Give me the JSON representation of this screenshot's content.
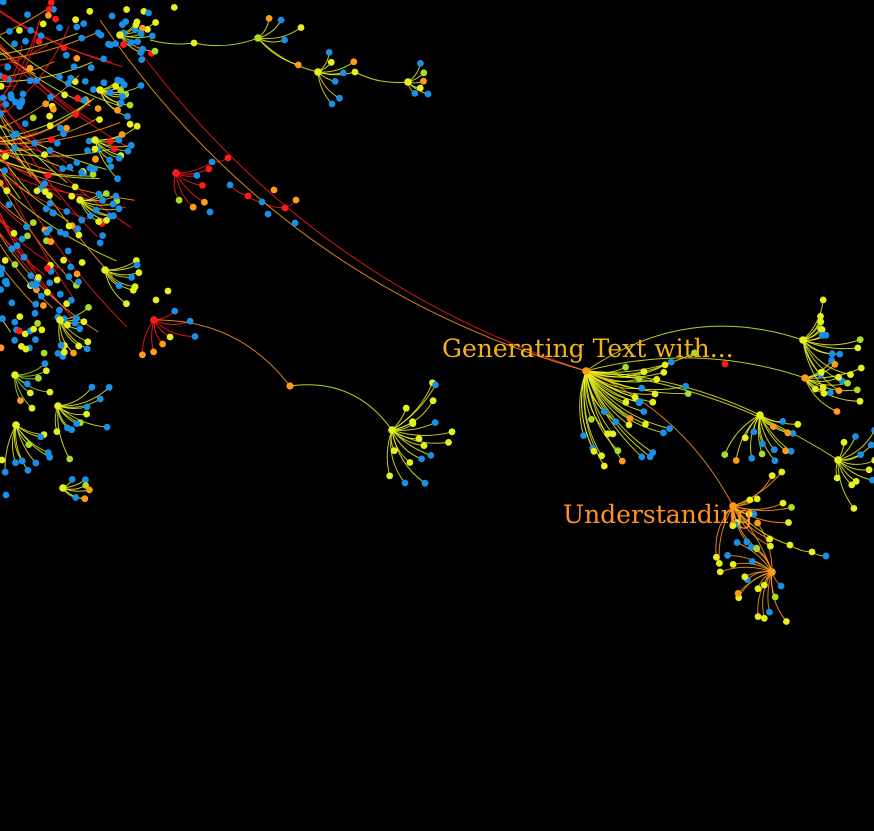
{
  "colors": {
    "background": "#000000",
    "blue": "#1a8fe6",
    "yellow": "#e6f01e",
    "lime": "#a8dc28",
    "orange": "#ff9a1a",
    "red": "#ff1a1a",
    "gold": "#f0c020"
  },
  "labels": {
    "generating": "Generating Text with...",
    "understanding": "Understanding"
  },
  "label_colors": {
    "generating": "#f0b418",
    "understanding": "#ff9224"
  }
}
